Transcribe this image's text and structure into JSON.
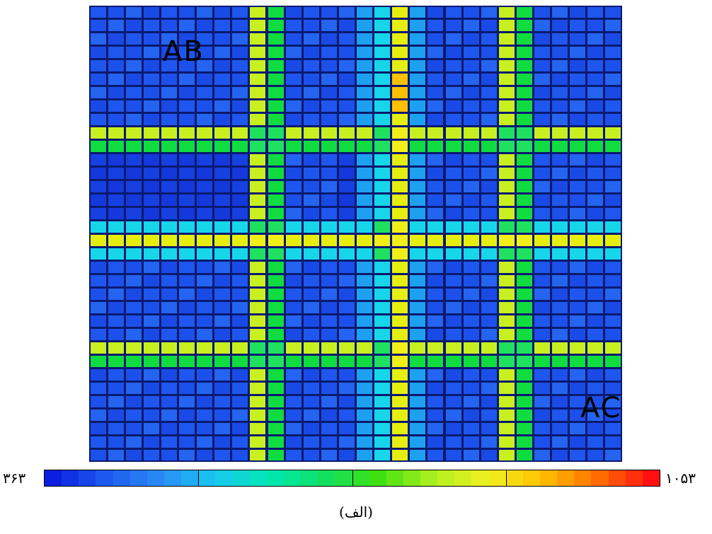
{
  "chart_data": {
    "type": "heatmap",
    "title": "",
    "caption": "(الف)",
    "colorbar": {
      "min_label": "۳۶۳",
      "max_label": "۱۰۵۳",
      "min": 363,
      "max": 1053,
      "colors": [
        "#0a1fe0",
        "#1e5cf0",
        "#2a8cf5",
        "#19c9f0",
        "#00e8b0",
        "#10e060",
        "#40e010",
        "#b0f020",
        "#f0f020",
        "#ffc000",
        "#ff7000",
        "#ff1010"
      ]
    },
    "grid": {
      "rows": 34,
      "cols": 30
    },
    "bands": {
      "vertical": [
        {
          "cols": [
            9,
            10
          ],
          "level": "green-yellow"
        },
        {
          "cols": [
            16
          ],
          "level": "cyan"
        },
        {
          "cols": [
            17
          ],
          "level": "yellow"
        },
        {
          "cols": [
            23,
            24
          ],
          "level": "green-yellow"
        }
      ],
      "horizontal": [
        {
          "rows": [
            9,
            10
          ],
          "level": "green-yellow"
        },
        {
          "rows": [
            16
          ],
          "level": "cyan"
        },
        {
          "rows": [
            17
          ],
          "level": "yellow"
        },
        {
          "rows": [
            18
          ],
          "level": "cyan"
        },
        {
          "rows": [
            25,
            26
          ],
          "level": "green-yellow"
        }
      ]
    },
    "annotations": [
      "AB",
      "AC"
    ]
  }
}
